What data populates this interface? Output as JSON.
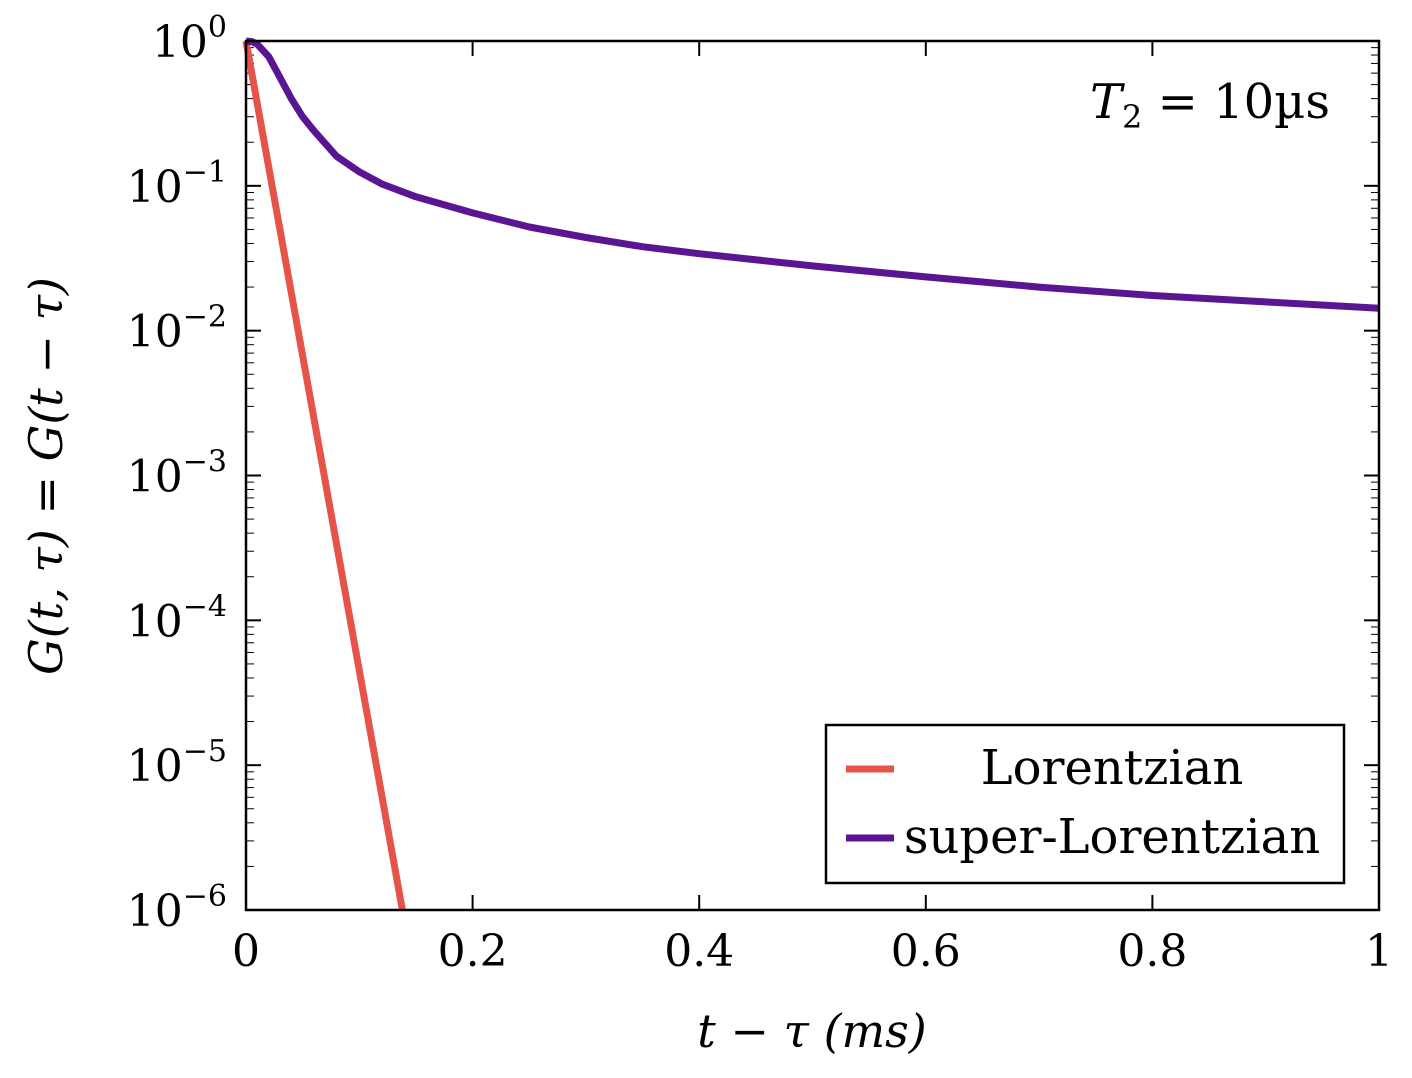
{
  "chart_data": {
    "type": "line",
    "title": "",
    "xlabel": "t − τ (ms)",
    "ylabel": "G(t, τ) = G(t − τ)",
    "yscale": "log",
    "xlim": [
      0,
      1
    ],
    "ylim": [
      1e-06,
      1
    ],
    "x_ticks": [
      0,
      0.2,
      0.4,
      0.6,
      0.8,
      1
    ],
    "x_tick_labels": [
      "0",
      "0.2",
      "0.4",
      "0.6",
      "0.8",
      "1"
    ],
    "y_ticks": [
      1,
      0.1,
      0.01,
      0.001,
      0.0001,
      1e-05,
      1e-06
    ],
    "y_tick_mantissa": "10",
    "y_tick_exponents": [
      "0",
      "−1",
      "−2",
      "−3",
      "−4",
      "−5",
      "−6"
    ],
    "annotation": {
      "symbol": "T",
      "subscript": "2",
      "rest": " = 10µs"
    },
    "legend_position": "bottom-right",
    "series": [
      {
        "name": "Lorentzian",
        "color": "#e5534b",
        "x": [
          0,
          0.138
        ],
        "y": [
          1,
          1e-06
        ]
      },
      {
        "name": "super-Lorentzian",
        "color": "#5a1692",
        "x": [
          0,
          0.005,
          0.01,
          0.02,
          0.03,
          0.04,
          0.05,
          0.06,
          0.08,
          0.1,
          0.12,
          0.15,
          0.2,
          0.25,
          0.3,
          0.35,
          0.4,
          0.5,
          0.6,
          0.7,
          0.8,
          0.9,
          1.0
        ],
        "y": [
          1,
          0.99,
          0.95,
          0.78,
          0.56,
          0.4,
          0.3,
          0.24,
          0.16,
          0.125,
          0.103,
          0.084,
          0.065,
          0.052,
          0.044,
          0.038,
          0.034,
          0.028,
          0.0235,
          0.02,
          0.0175,
          0.0158,
          0.0143
        ]
      }
    ]
  }
}
